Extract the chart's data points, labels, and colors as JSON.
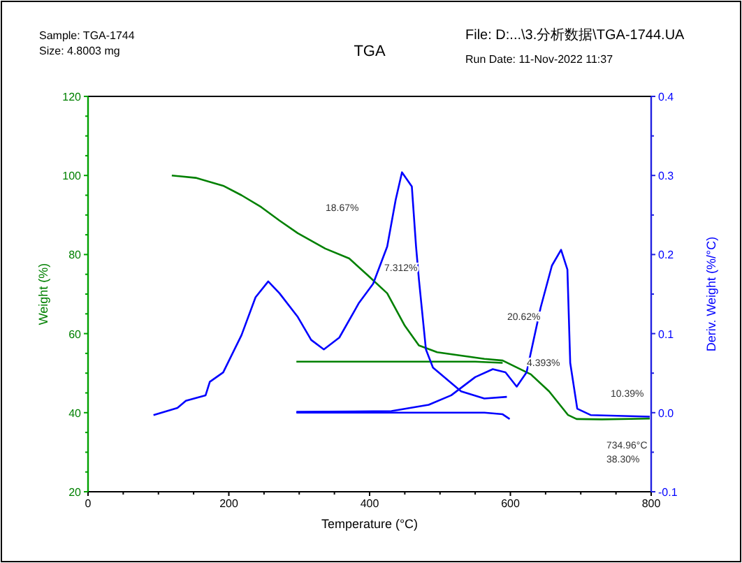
{
  "chart_data": {
    "type": "line",
    "title": "TGA",
    "xlabel": "Temperature (°C)",
    "ylabel": "Weight (%)",
    "y2label": "Deriv. Weight (%/°C)",
    "xlim": [
      0,
      800
    ],
    "xticks": [
      0,
      {
        "value": 50,
        "label": null
      },
      {
        "value": 100,
        "label": null
      },
      {
        "value": 150,
        "label": null
      },
      200,
      {
        "value": 250,
        "label": null
      },
      {
        "value": 300,
        "label": null
      },
      {
        "value": 350,
        "label": null
      },
      400,
      {
        "value": 450,
        "label": null
      },
      {
        "value": 500,
        "label": null
      },
      {
        "value": 550,
        "label": null
      },
      600,
      {
        "value": 650,
        "label": null
      },
      {
        "value": 700,
        "label": null
      },
      {
        "value": 750,
        "label": null
      },
      800
    ],
    "ylim": [
      20,
      120
    ],
    "yticks": [
      20,
      {
        "value": 25,
        "label": null
      },
      {
        "value": 30,
        "label": null
      },
      {
        "value": 35,
        "label": null
      },
      40,
      {
        "value": 45,
        "label": null
      },
      {
        "value": 50,
        "label": null
      },
      {
        "value": 55,
        "label": null
      },
      60,
      {
        "value": 65,
        "label": null
      },
      {
        "value": 70,
        "label": null
      },
      {
        "value": 75,
        "label": null
      },
      80,
      {
        "value": 85,
        "label": null
      },
      {
        "value": 90,
        "label": null
      },
      {
        "value": 95,
        "label": null
      },
      100,
      {
        "value": 105,
        "label": null
      },
      {
        "value": 110,
        "label": null
      },
      {
        "value": 115,
        "label": null
      },
      120
    ],
    "y2lim": [
      -0.1,
      0.4
    ],
    "y2ticks": [
      {
        "value": -0.1,
        "label": "-0.1"
      },
      {
        "value": -0.05,
        "label": null
      },
      {
        "value": 0,
        "label": "0.0"
      },
      {
        "value": 0.05,
        "label": null
      },
      {
        "value": 0.1,
        "label": "0.1"
      },
      {
        "value": 0.15,
        "label": null
      },
      {
        "value": 0.2,
        "label": "0.2"
      },
      {
        "value": 0.25,
        "label": null
      },
      {
        "value": 0.3,
        "label": "0.3"
      },
      {
        "value": 0.35,
        "label": null
      },
      {
        "value": 0.4,
        "label": "0.4"
      }
    ],
    "grid": false,
    "marker": "none",
    "line_style": "solid",
    "series": [
      {
        "color": "#008000",
        "x": [
          119,
          153,
          192,
          218,
          246,
          272,
          298,
          337,
          371,
          397,
          425,
          450,
          470,
          496,
          563,
          589,
          629,
          655,
          682,
          694,
          730,
          798
        ],
        "values": [
          100,
          99.4,
          97.4,
          95,
          92,
          88.6,
          85.4,
          81.5,
          79,
          74.8,
          70.2,
          62,
          57,
          55.3,
          53.6,
          53.2,
          49.7,
          45.4,
          39.4,
          38.4,
          38.3,
          38.5
        ]
      },
      {
        "color": "#008000",
        "x": [
          296,
          450,
          550,
          589
        ],
        "values": [
          52.9,
          52.9,
          52.9,
          52.6
        ]
      },
      {
        "color": "#0000ff",
        "axis": "y2",
        "x": [
          93,
          127,
          139,
          167,
          173,
          192,
          218,
          238,
          256,
          272,
          298,
          317,
          335,
          357,
          385,
          405,
          425,
          437,
          446,
          460,
          466,
          470,
          480,
          490,
          530,
          563,
          595
        ],
        "values": [
          -0.003,
          0.006,
          0.015,
          0.022,
          0.039,
          0.051,
          0.098,
          0.146,
          0.166,
          0.151,
          0.121,
          0.092,
          0.08,
          0.095,
          0.139,
          0.163,
          0.21,
          0.269,
          0.304,
          0.286,
          0.21,
          0.169,
          0.08,
          0.057,
          0.027,
          0.018,
          0.02
        ]
      },
      {
        "color": "#0000ff",
        "axis": "y2",
        "x": [
          296,
          431,
          484,
          516,
          550,
          575,
          593,
          609,
          623,
          643,
          659,
          672,
          681,
          685,
          695,
          714,
          798
        ],
        "values": [
          0.001,
          0.002,
          0.01,
          0.022,
          0.045,
          0.055,
          0.051,
          0.033,
          0.051,
          0.133,
          0.186,
          0.206,
          0.181,
          0.063,
          0.005,
          -0.003,
          -0.005
        ]
      },
      {
        "color": "#0000ff",
        "axis": "y2",
        "x": [
          296,
          460,
          563,
          589,
          599
        ],
        "values": [
          0,
          0,
          0,
          -0.002,
          -0.008
        ]
      }
    ],
    "annotations": [
      "Sample: TGA-1744",
      "Size:  4.8003 mg",
      "File: D:...\\3.分析数据\\TGA-1744.UA",
      "Run Date: 11-Nov-2022 11:37",
      "18.67%",
      "7.312%",
      "20.62%",
      "4.393%",
      "10.39%",
      "734.96°C",
      "38.30%"
    ]
  }
}
